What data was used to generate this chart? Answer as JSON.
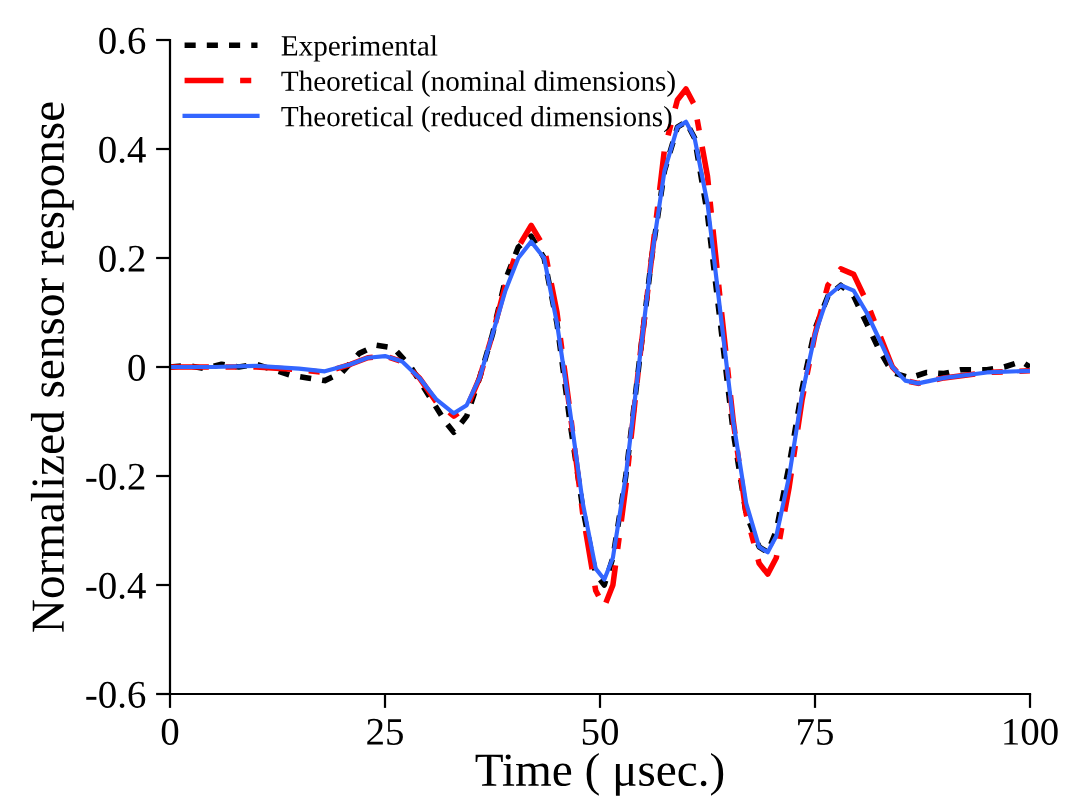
{
  "chart_data": {
    "type": "line",
    "xlabel": "Time ( μsec.)",
    "ylabel": "Normalized sensor response",
    "xlim": [
      0,
      100
    ],
    "xticks": [
      0,
      25,
      50,
      75,
      100
    ],
    "ylim": [
      -0.6,
      0.6
    ],
    "yticks": [
      {
        "value": -0.6,
        "label": "-0.6"
      },
      {
        "value": -0.4,
        "label": "-0.4"
      },
      {
        "value": -0.2,
        "label": "-0.2"
      },
      0,
      0.2,
      0.4,
      0.6
    ],
    "grid": false,
    "legend": "top left",
    "marker": "none",
    "series": [
      {
        "name": "Experimental",
        "color": "#000000",
        "line_style": "dotted",
        "x": [
          0,
          2,
          4,
          6,
          8,
          10,
          12,
          14,
          16,
          18,
          20,
          22,
          24,
          26,
          28,
          30,
          32,
          33,
          34.5,
          36,
          37.5,
          39,
          40.5,
          42,
          43.5,
          45,
          46.5,
          48,
          49.5,
          50.5,
          51.5,
          53,
          54.5,
          56,
          57.5,
          59,
          60,
          61,
          62.5,
          64,
          65.5,
          67,
          68.5,
          69.5,
          70.5,
          72,
          73.5,
          75,
          76.5,
          78,
          79.5,
          81,
          82.5,
          84,
          86,
          88,
          90,
          92,
          95,
          97,
          99,
          100
        ],
        "values": [
          0,
          0.003,
          -0.003,
          0.005,
          0,
          0.005,
          -0.005,
          -0.015,
          -0.02,
          -0.025,
          -0.01,
          0.025,
          0.04,
          0.035,
          0,
          -0.05,
          -0.1,
          -0.12,
          -0.09,
          -0.02,
          0.06,
          0.16,
          0.22,
          0.24,
          0.2,
          0.08,
          -0.1,
          -0.26,
          -0.38,
          -0.4,
          -0.35,
          -0.2,
          0,
          0.2,
          0.36,
          0.44,
          0.45,
          0.42,
          0.28,
          0.08,
          -0.12,
          -0.27,
          -0.33,
          -0.34,
          -0.3,
          -0.18,
          -0.04,
          0.07,
          0.13,
          0.15,
          0.13,
          0.08,
          0.03,
          -0.01,
          -0.02,
          -0.01,
          -0.012,
          -0.005,
          -0.005,
          0,
          0.01,
          0
        ]
      },
      {
        "name": "Theoretical (nominal dimensions)",
        "color": "#ff0000",
        "line_style": "dashed",
        "x": [
          0,
          5,
          10,
          15,
          18,
          21,
          23,
          25,
          27,
          29,
          31,
          33,
          34.5,
          36,
          37.5,
          39,
          40.5,
          42,
          43.5,
          45,
          46.5,
          48,
          49.5,
          50.5,
          51.5,
          53,
          54.5,
          56,
          57.5,
          59,
          60,
          61,
          62.5,
          64,
          65.5,
          67,
          68.5,
          69.5,
          70.5,
          72,
          73.5,
          75,
          76.5,
          78,
          79.5,
          81,
          82.5,
          84,
          85.5,
          87,
          90,
          95,
          100
        ],
        "values": [
          0,
          0,
          0,
          -0.005,
          -0.01,
          0.005,
          0.017,
          0.02,
          0.01,
          -0.02,
          -0.065,
          -0.09,
          -0.075,
          -0.02,
          0.06,
          0.15,
          0.22,
          0.26,
          0.22,
          0.1,
          -0.08,
          -0.27,
          -0.41,
          -0.44,
          -0.4,
          -0.22,
          0,
          0.2,
          0.4,
          0.49,
          0.51,
          0.48,
          0.35,
          0.12,
          -0.1,
          -0.27,
          -0.36,
          -0.38,
          -0.35,
          -0.22,
          -0.06,
          0.06,
          0.15,
          0.18,
          0.17,
          0.12,
          0.06,
          0,
          -0.025,
          -0.03,
          -0.02,
          -0.01,
          -0.007
        ]
      },
      {
        "name": "Theoretical (reduced dimensions)",
        "color": "#3366ff",
        "line_style": "solid",
        "x": [
          0,
          5,
          10,
          15,
          18,
          21,
          23,
          25,
          27,
          29,
          31,
          33,
          34.5,
          36,
          37.5,
          39,
          40.5,
          42,
          43.5,
          45,
          46.5,
          48,
          49.5,
          50.5,
          51.5,
          53,
          54.5,
          56,
          57.5,
          59,
          60,
          61,
          62.5,
          64,
          65.5,
          67,
          68.5,
          69.5,
          70.5,
          72,
          73.5,
          75,
          76.5,
          78,
          79.5,
          81,
          82.5,
          84,
          85.5,
          87,
          90,
          95,
          100
        ],
        "values": [
          0,
          0,
          0.002,
          -0.003,
          -0.008,
          0.005,
          0.017,
          0.02,
          0.01,
          -0.02,
          -0.06,
          -0.085,
          -0.07,
          -0.02,
          0.06,
          0.14,
          0.2,
          0.23,
          0.2,
          0.08,
          -0.08,
          -0.25,
          -0.37,
          -0.39,
          -0.35,
          -0.2,
          0,
          0.2,
          0.36,
          0.44,
          0.45,
          0.42,
          0.3,
          0.1,
          -0.1,
          -0.25,
          -0.33,
          -0.34,
          -0.31,
          -0.2,
          -0.05,
          0.06,
          0.13,
          0.15,
          0.14,
          0.1,
          0.05,
          0,
          -0.025,
          -0.03,
          -0.02,
          -0.01,
          -0.007
        ]
      }
    ]
  }
}
